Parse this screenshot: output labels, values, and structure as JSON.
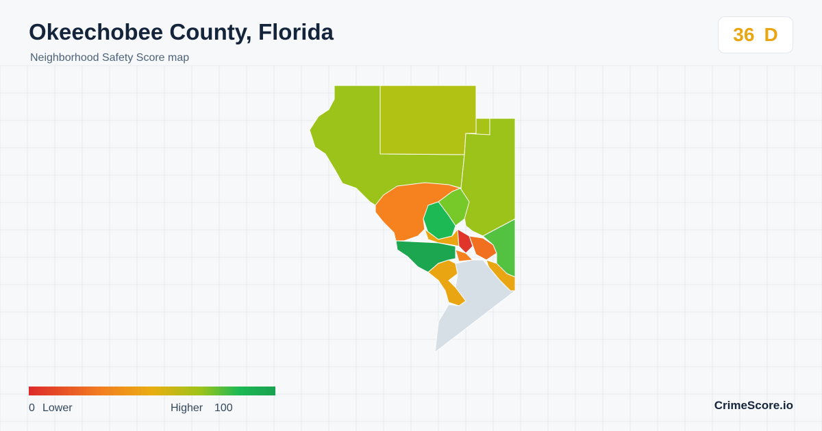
{
  "header": {
    "title": "Okeechobee County, Florida",
    "subtitle": "Neighborhood Safety Score map"
  },
  "badge": {
    "score": "36",
    "grade": "D"
  },
  "legend": {
    "min": "0",
    "low_label": "Lower",
    "high_label": "Higher",
    "max": "100"
  },
  "brand": "CrimeScore.io"
}
